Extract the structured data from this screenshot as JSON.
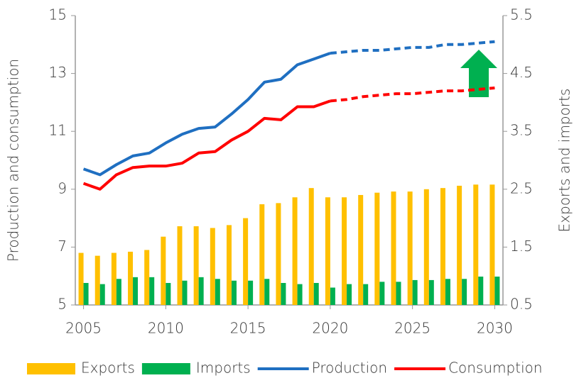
{
  "chart_data": {
    "type": "bar_line",
    "y_label": "Production and consumption",
    "y2_label": "Exports and imports",
    "x": [
      2005,
      2006,
      2007,
      2008,
      2009,
      2010,
      2011,
      2012,
      2013,
      2014,
      2015,
      2016,
      2017,
      2018,
      2019,
      2020,
      2021,
      2022,
      2023,
      2024,
      2025,
      2026,
      2027,
      2028,
      2029,
      2030
    ],
    "xlim": [
      2004.5,
      2030.5
    ],
    "xticks": [
      2005,
      2010,
      2015,
      2020,
      2025,
      2030
    ],
    "ylim": [
      5,
      15
    ],
    "yticks": [
      5,
      7,
      9,
      11,
      13,
      15
    ],
    "y2lim": [
      0.5,
      5.5
    ],
    "y2ticks": [
      0.5,
      1.5,
      2.5,
      3.5,
      4.5,
      5.5
    ],
    "grid": false,
    "dashed_from": 2020,
    "series": [
      {
        "name": "Exports",
        "type": "bar",
        "axis": "y2",
        "color": "#ffc000",
        "values": [
          1.4,
          1.35,
          1.4,
          1.42,
          1.45,
          1.68,
          1.86,
          1.86,
          1.83,
          1.88,
          2.0,
          2.24,
          2.26,
          2.36,
          2.52,
          2.36,
          2.36,
          2.4,
          2.44,
          2.46,
          2.46,
          2.5,
          2.52,
          2.56,
          2.58,
          2.58
        ]
      },
      {
        "name": "Imports",
        "type": "bar",
        "axis": "y2",
        "color": "#00b050",
        "values": [
          0.88,
          0.86,
          0.95,
          0.98,
          0.98,
          0.88,
          0.92,
          0.98,
          0.95,
          0.92,
          0.92,
          0.95,
          0.88,
          0.86,
          0.88,
          0.8,
          0.86,
          0.86,
          0.9,
          0.9,
          0.93,
          0.93,
          0.95,
          0.95,
          0.99,
          0.99
        ]
      },
      {
        "name": "Production",
        "type": "line",
        "color": "#1f6fc1",
        "values": [
          9.7,
          9.5,
          9.85,
          10.15,
          10.25,
          10.6,
          10.9,
          11.1,
          11.15,
          11.6,
          12.1,
          12.7,
          12.8,
          13.3,
          13.5,
          13.7,
          13.75,
          13.8,
          13.8,
          13.85,
          13.9,
          13.9,
          14.0,
          14.0,
          14.05,
          14.1
        ]
      },
      {
        "name": "Consumption",
        "type": "line",
        "color": "#ff0000",
        "values": [
          9.2,
          9.0,
          9.5,
          9.75,
          9.8,
          9.8,
          9.9,
          10.25,
          10.3,
          10.7,
          11.0,
          11.45,
          11.4,
          11.85,
          11.85,
          12.05,
          12.1,
          12.2,
          12.25,
          12.3,
          12.3,
          12.35,
          12.4,
          12.4,
          12.45,
          12.5
        ]
      }
    ]
  }
}
